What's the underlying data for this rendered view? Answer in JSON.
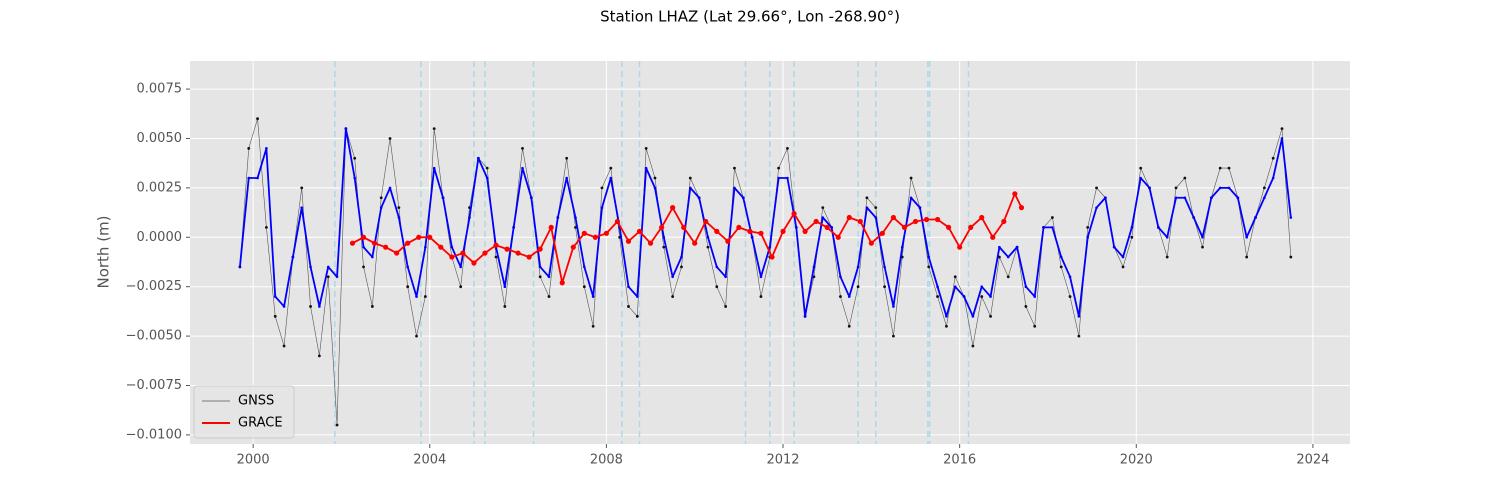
{
  "chart_data": {
    "type": "line",
    "title": "Station LHAZ (Lat 29.66°, Lon -268.90°)",
    "y_label": "North (m)",
    "xlim": [
      1998.57,
      2024.84
    ],
    "xticks": [
      2000,
      2004,
      2008,
      2012,
      2016,
      2020,
      2024
    ],
    "ylim": [
      -0.01046,
      0.00892
    ],
    "yticks": [
      {
        "value": -0.01,
        "label": "−0.0100"
      },
      {
        "value": -0.0075,
        "label": "−0.0075"
      },
      {
        "value": -0.005,
        "label": "−0.0050"
      },
      {
        "value": -0.0025,
        "label": "−0.0025"
      },
      {
        "value": 0,
        "label": "0.0000"
      },
      {
        "value": 0.0025,
        "label": "0.0025"
      },
      {
        "value": 0.005,
        "label": "0.0050"
      },
      {
        "value": 0.0075,
        "label": "0.0075"
      }
    ],
    "grid": true,
    "legend": "lower left",
    "events": [
      2001.85,
      2003.8,
      2005.0,
      2005.25,
      2006.35,
      2008.35,
      2008.75,
      2011.15,
      2011.7,
      2012.25,
      2013.7,
      2014.1,
      2015.28,
      2015.32,
      2016.2
    ],
    "event_color": "#add8e6",
    "series": [
      {
        "name": "GNSS",
        "color": "#333333",
        "x": [
          1999.7,
          1999.9,
          2000.1,
          2000.3,
          2000.5,
          2000.7,
          2000.9,
          2001.1,
          2001.3,
          2001.5,
          2001.7,
          2001.9,
          2002.1,
          2002.3,
          2002.5,
          2002.7,
          2002.9,
          2003.1,
          2003.3,
          2003.5,
          2003.7,
          2003.9,
          2004.1,
          2004.3,
          2004.5,
          2004.7,
          2004.9,
          2005.1,
          2005.3,
          2005.5,
          2005.7,
          2005.9,
          2006.1,
          2006.3,
          2006.5,
          2006.7,
          2006.9,
          2007.1,
          2007.3,
          2007.5,
          2007.7,
          2007.9,
          2008.1,
          2008.3,
          2008.5,
          2008.7,
          2008.9,
          2009.1,
          2009.3,
          2009.5,
          2009.7,
          2009.9,
          2010.1,
          2010.3,
          2010.5,
          2010.7,
          2010.9,
          2011.1,
          2011.3,
          2011.5,
          2011.7,
          2011.9,
          2012.1,
          2012.3,
          2012.5,
          2012.7,
          2012.9,
          2013.1,
          2013.3,
          2013.5,
          2013.7,
          2013.9,
          2014.1,
          2014.3,
          2014.5,
          2014.7,
          2014.9,
          2015.1,
          2015.3,
          2015.5,
          2015.7,
          2015.9,
          2016.1,
          2016.3,
          2016.5,
          2016.7,
          2016.9,
          2017.1,
          2017.3,
          2017.5,
          2017.7,
          2017.9,
          2018.1,
          2018.3,
          2018.5,
          2018.7,
          2018.9,
          2019.1,
          2019.3,
          2019.5,
          2019.7,
          2019.9,
          2020.1,
          2020.3,
          2020.5,
          2020.7,
          2020.9,
          2021.1,
          2021.3,
          2021.5,
          2021.7,
          2021.9,
          2022.1,
          2022.3,
          2022.5,
          2022.7,
          2022.9,
          2023.1,
          2023.3,
          2023.5
        ],
        "values": [
          -0.0015,
          0.0045,
          0.006,
          0.0005,
          -0.004,
          -0.0055,
          -0.001,
          0.0025,
          -0.0035,
          -0.006,
          -0.002,
          -0.0095,
          0.0055,
          0.004,
          -0.0015,
          -0.0035,
          0.002,
          0.005,
          0.0015,
          -0.0025,
          -0.005,
          -0.003,
          0.0055,
          0.002,
          -0.001,
          -0.0025,
          0.0015,
          0.004,
          0.0035,
          -0.001,
          -0.0035,
          0.0005,
          0.0045,
          0.002,
          -0.002,
          -0.003,
          0.001,
          0.004,
          0.0005,
          -0.0025,
          -0.0045,
          0.0025,
          0.0035,
          0.0,
          -0.0035,
          -0.004,
          0.0045,
          0.003,
          -0.0005,
          -0.003,
          -0.0015,
          0.003,
          0.002,
          -0.0005,
          -0.0025,
          -0.0035,
          0.0035,
          0.002,
          0.0,
          -0.003,
          -0.001,
          0.0035,
          0.0045,
          0.0005,
          -0.004,
          -0.002,
          0.0015,
          0.0005,
          -0.003,
          -0.0045,
          -0.0025,
          0.002,
          0.0015,
          -0.0025,
          -0.005,
          -0.001,
          0.003,
          0.0015,
          -0.0015,
          -0.003,
          -0.0045,
          -0.002,
          -0.003,
          -0.0055,
          -0.003,
          -0.004,
          -0.001,
          -0.002,
          -0.0005,
          -0.0035,
          -0.0045,
          0.0005,
          0.001,
          -0.0015,
          -0.003,
          -0.005,
          0.0005,
          0.0025,
          0.002,
          -0.0005,
          -0.0015,
          0.0,
          0.0035,
          0.0025,
          0.0005,
          -0.001,
          0.0025,
          0.003,
          0.001,
          -0.0005,
          0.002,
          0.0035,
          0.0035,
          0.002,
          -0.001,
          0.001,
          0.0025,
          0.004,
          0.0055,
          -0.001
        ]
      },
      {
        "color": "#0000ff",
        "x": [
          1999.7,
          1999.9,
          2000.1,
          2000.3,
          2000.5,
          2000.7,
          2000.9,
          2001.1,
          2001.3,
          2001.5,
          2001.7,
          2001.9,
          2002.1,
          2002.3,
          2002.5,
          2002.7,
          2002.9,
          2003.1,
          2003.3,
          2003.5,
          2003.7,
          2003.9,
          2004.1,
          2004.3,
          2004.5,
          2004.7,
          2004.9,
          2005.1,
          2005.3,
          2005.5,
          2005.7,
          2005.9,
          2006.1,
          2006.3,
          2006.5,
          2006.7,
          2006.9,
          2007.1,
          2007.3,
          2007.5,
          2007.7,
          2007.9,
          2008.1,
          2008.3,
          2008.5,
          2008.7,
          2008.9,
          2009.1,
          2009.3,
          2009.5,
          2009.7,
          2009.9,
          2010.1,
          2010.3,
          2010.5,
          2010.7,
          2010.9,
          2011.1,
          2011.3,
          2011.5,
          2011.7,
          2011.9,
          2012.1,
          2012.3,
          2012.5,
          2012.7,
          2012.9,
          2013.1,
          2013.3,
          2013.5,
          2013.7,
          2013.9,
          2014.1,
          2014.3,
          2014.5,
          2014.7,
          2014.9,
          2015.1,
          2015.3,
          2015.5,
          2015.7,
          2015.9,
          2016.1,
          2016.3,
          2016.5,
          2016.7,
          2016.9,
          2017.1,
          2017.3,
          2017.5,
          2017.7,
          2017.9,
          2018.1,
          2018.3,
          2018.5,
          2018.7,
          2018.9,
          2019.1,
          2019.3,
          2019.5,
          2019.7,
          2019.9,
          2020.1,
          2020.3,
          2020.5,
          2020.7,
          2020.9,
          2021.1,
          2021.3,
          2021.5,
          2021.7,
          2021.9,
          2022.1,
          2022.3,
          2022.5,
          2022.7,
          2022.9,
          2023.1,
          2023.3,
          2023.5
        ],
        "values": [
          -0.0015,
          0.003,
          0.003,
          0.0045,
          -0.003,
          -0.0035,
          -0.001,
          0.0015,
          -0.0015,
          -0.0035,
          -0.0015,
          -0.002,
          0.0055,
          0.003,
          -0.0005,
          -0.001,
          0.0015,
          0.0025,
          0.001,
          -0.0015,
          -0.003,
          -0.0005,
          0.0035,
          0.002,
          -0.0005,
          -0.0015,
          0.001,
          0.004,
          0.003,
          -0.0005,
          -0.0025,
          0.0005,
          0.0035,
          0.002,
          -0.0015,
          -0.002,
          0.001,
          0.003,
          0.001,
          -0.0015,
          -0.003,
          0.0015,
          0.003,
          0.0005,
          -0.0025,
          -0.003,
          0.0035,
          0.0025,
          0.0,
          -0.002,
          -0.001,
          0.0025,
          0.002,
          0.0,
          -0.0015,
          -0.002,
          0.0025,
          0.002,
          0.0,
          -0.002,
          -0.0005,
          0.003,
          0.003,
          0.0005,
          -0.004,
          -0.0015,
          0.001,
          0.0005,
          -0.002,
          -0.003,
          -0.0015,
          0.0015,
          0.001,
          -0.0015,
          -0.0035,
          -0.0005,
          0.002,
          0.0015,
          -0.001,
          -0.0025,
          -0.004,
          -0.0025,
          -0.003,
          -0.004,
          -0.0025,
          -0.003,
          -0.0005,
          -0.001,
          -0.0005,
          -0.0025,
          -0.003,
          0.0005,
          0.0005,
          -0.001,
          -0.002,
          -0.004,
          0.0,
          0.0015,
          0.002,
          -0.0005,
          -0.001,
          0.0005,
          0.003,
          0.0025,
          0.0005,
          0.0,
          0.002,
          0.002,
          0.001,
          0.0,
          0.002,
          0.0025,
          0.0025,
          0.002,
          0.0,
          0.001,
          0.002,
          0.003,
          0.005,
          0.001
        ]
      },
      {
        "name": "GRACE",
        "color": "#ff0000",
        "x": [
          2002.25,
          2002.5,
          2002.75,
          2003.0,
          2003.25,
          2003.5,
          2003.75,
          2004.0,
          2004.25,
          2004.5,
          2004.75,
          2005.0,
          2005.25,
          2005.5,
          2005.75,
          2006.0,
          2006.25,
          2006.5,
          2006.75,
          2007.0,
          2007.25,
          2007.5,
          2007.75,
          2008.0,
          2008.25,
          2008.5,
          2008.75,
          2009.0,
          2009.25,
          2009.5,
          2009.75,
          2010.0,
          2010.25,
          2010.5,
          2010.75,
          2011.0,
          2011.25,
          2011.5,
          2011.75,
          2012.0,
          2012.25,
          2012.5,
          2012.75,
          2013.0,
          2013.25,
          2013.5,
          2013.75,
          2014.0,
          2014.25,
          2014.5,
          2014.75,
          2015.0,
          2015.25,
          2015.5,
          2015.75,
          2016.0,
          2016.25,
          2016.5,
          2016.75,
          2017.0,
          2017.25,
          2017.4
        ],
        "values": [
          -0.0003,
          0.0,
          -0.0003,
          -0.0005,
          -0.0008,
          -0.0003,
          0.0,
          0.0,
          -0.0005,
          -0.001,
          -0.0008,
          -0.0013,
          -0.0008,
          -0.0004,
          -0.0006,
          -0.0008,
          -0.001,
          -0.0006,
          0.0005,
          -0.0023,
          -0.0005,
          0.0002,
          0.0,
          0.0002,
          0.0008,
          -0.0002,
          0.0003,
          -0.0003,
          0.0005,
          0.0015,
          0.0005,
          -0.0003,
          0.0008,
          0.0003,
          -0.0002,
          0.0005,
          0.0003,
          0.0002,
          -0.001,
          0.0003,
          0.0012,
          0.0003,
          0.0008,
          0.0005,
          0.0,
          0.001,
          0.0008,
          -0.0003,
          0.0002,
          0.001,
          0.0005,
          0.0008,
          0.0009,
          0.0009,
          0.0005,
          -0.0005,
          0.0005,
          0.001,
          0.0,
          0.0008,
          0.0022,
          0.0015
        ]
      }
    ]
  }
}
